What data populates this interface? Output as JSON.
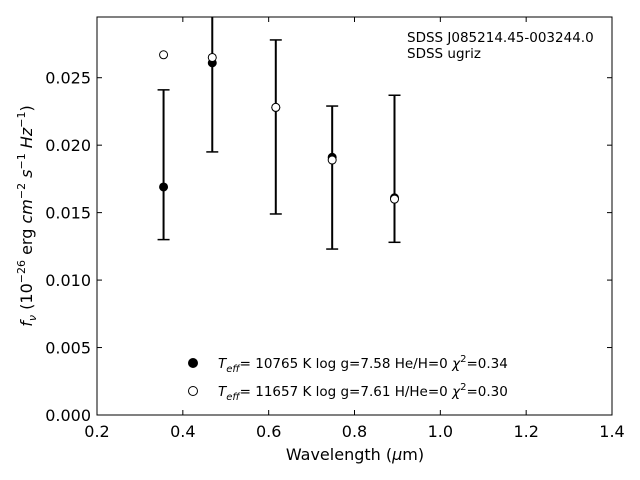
{
  "chart_data": {
    "type": "scatter",
    "title": "",
    "xlabel_main": "Wavelength (",
    "xlabel_mu": "μ",
    "xlabel_unit": "m)",
    "ylabel_parts": {
      "f": "f",
      "nu": "ν",
      "pre": " (10",
      "exp1": "−26",
      "mid": " erg ",
      "cm": "cm",
      "exp2": "−2",
      "s": " s",
      "exp3": "−1",
      "hz": " Hz",
      "exp4": "−1",
      "close": ")"
    },
    "xlim": [
      0.2,
      1.4
    ],
    "ylim": [
      0.0,
      0.0295
    ],
    "x_ticks": [
      0.2,
      0.4,
      0.6,
      0.8,
      1.0,
      1.2,
      1.4
    ],
    "x_tick_labels": [
      "0.2",
      "0.4",
      "0.6",
      "0.8",
      "1.0",
      "1.2",
      "1.4"
    ],
    "y_ticks": [
      0.0,
      0.005,
      0.01,
      0.015,
      0.02,
      0.025
    ],
    "y_tick_labels": [
      "0.000",
      "0.005",
      "0.010",
      "0.015",
      "0.020",
      "0.025"
    ],
    "annotation": [
      "SDSS J085214.45-003244.0",
      "SDSS ugriz"
    ],
    "observed": {
      "x": [
        0.3551,
        0.4686,
        0.6166,
        0.748,
        0.8932
      ],
      "y": [
        0.0169,
        0.0262,
        0.0228,
        0.0191,
        0.0161
      ],
      "yerr_low": [
        0.013,
        0.0195,
        0.0149,
        0.0123,
        0.0128
      ],
      "yerr_high": [
        0.0241,
        0.0299,
        0.0278,
        0.0229,
        0.0237
      ]
    },
    "series": [
      {
        "name": "Teff= 10765 K  log g=7.58  He/H=0  χ2=0.34",
        "marker": "filled-circle",
        "x": [
          0.3551,
          0.4686,
          0.6166,
          0.748,
          0.8932
        ],
        "y": [
          0.0169,
          0.0261,
          0.0228,
          0.0191,
          0.0161
        ]
      },
      {
        "name": "Teff= 11657 K  log g=7.61  H/He=0  χ2=0.30",
        "marker": "open-circle",
        "x": [
          0.3551,
          0.4686,
          0.6166,
          0.748,
          0.8932
        ],
        "y": [
          0.0267,
          0.0265,
          0.0228,
          0.0189,
          0.016
        ]
      }
    ],
    "legend": [
      {
        "T": "T",
        "eff": "eff",
        "main": "= 10765 K  log g=7.58  He/H=0  ",
        "chi": "χ",
        "sup": "2",
        "val": "=0.34",
        "marker": "filled-circle"
      },
      {
        "T": "T",
        "eff": "eff",
        "main": "= 11657 K  log g=7.61  H/He=0  ",
        "chi": "χ",
        "sup": "2",
        "val": "=0.30",
        "marker": "open-circle"
      }
    ],
    "legend_position": "bottom-center",
    "grid": false,
    "colors": {
      "axes": "#000000",
      "marker": "#000000",
      "background": "#ffffff"
    }
  }
}
